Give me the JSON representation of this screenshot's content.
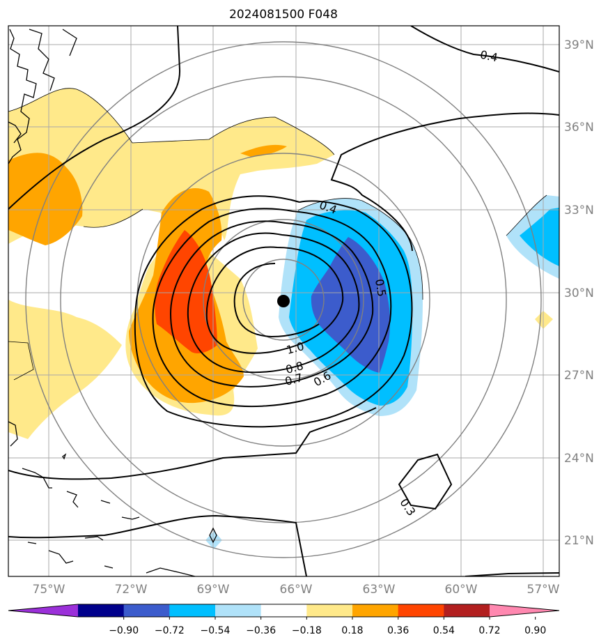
{
  "chart_data": {
    "type": "contour-map",
    "title": "2024081500 F048",
    "map": {
      "lon_range": [
        -76.5,
        -56.5
      ],
      "lat_range": [
        19.8,
        39.7
      ],
      "x_ticks": [
        {
          "value": -75,
          "label": "75°W"
        },
        {
          "value": -72,
          "label": "72°W"
        },
        {
          "value": -69,
          "label": "69°W"
        },
        {
          "value": -66,
          "label": "66°W"
        },
        {
          "value": -63,
          "label": "63°W"
        },
        {
          "value": -60,
          "label": "60°W"
        },
        {
          "value": -57,
          "label": "57°W"
        }
      ],
      "y_ticks": [
        {
          "value": 39,
          "label": "39°N"
        },
        {
          "value": 36,
          "label": "36°N"
        },
        {
          "value": 33,
          "label": "33°N"
        },
        {
          "value": 30,
          "label": "30°N"
        },
        {
          "value": 27,
          "label": "27°N"
        },
        {
          "value": 24,
          "label": "24°N"
        },
        {
          "value": 21,
          "label": "21°N"
        }
      ],
      "grid": true,
      "tick_side": "right-bottom"
    },
    "storm_center": {
      "lon": -66.5,
      "lat": 29.7
    },
    "contour_labels": [
      {
        "text": "0.4",
        "lon": -64.8,
        "lat": 33.0,
        "angle": 20
      },
      {
        "text": "0.4",
        "lon": -60.0,
        "lat": 38.5,
        "angle": 12
      },
      {
        "text": "0.5",
        "lon": -62.6,
        "lat": 30.2,
        "angle": 80
      },
      {
        "text": "1.0",
        "lon": -66.0,
        "lat": 28.0,
        "angle": -15
      },
      {
        "text": "0.8",
        "lon": -66.1,
        "lat": 27.3,
        "angle": -15
      },
      {
        "text": "0.7",
        "lon": -66.1,
        "lat": 26.9,
        "angle": -15
      },
      {
        "text": "0.6",
        "lon": -65.1,
        "lat": 26.9,
        "angle": -30
      },
      {
        "text": "0.3",
        "lon": -61.7,
        "lat": 22.6,
        "angle": 55
      }
    ],
    "colorbar": {
      "colors": [
        "#9b30d9",
        "#00008b",
        "#3c5ccc",
        "#00bfff",
        "#b0e2f9",
        "#ffffff",
        "#ffe98a",
        "#ffa500",
        "#ff4500",
        "#b21f1f",
        "#ff88b0"
      ],
      "ticks": [
        "−0.90",
        "−0.72",
        "−0.54",
        "−0.36",
        "−0.18",
        "0.18",
        "0.36",
        "0.54",
        "0.72",
        "0.90"
      ],
      "extend": "both"
    }
  }
}
